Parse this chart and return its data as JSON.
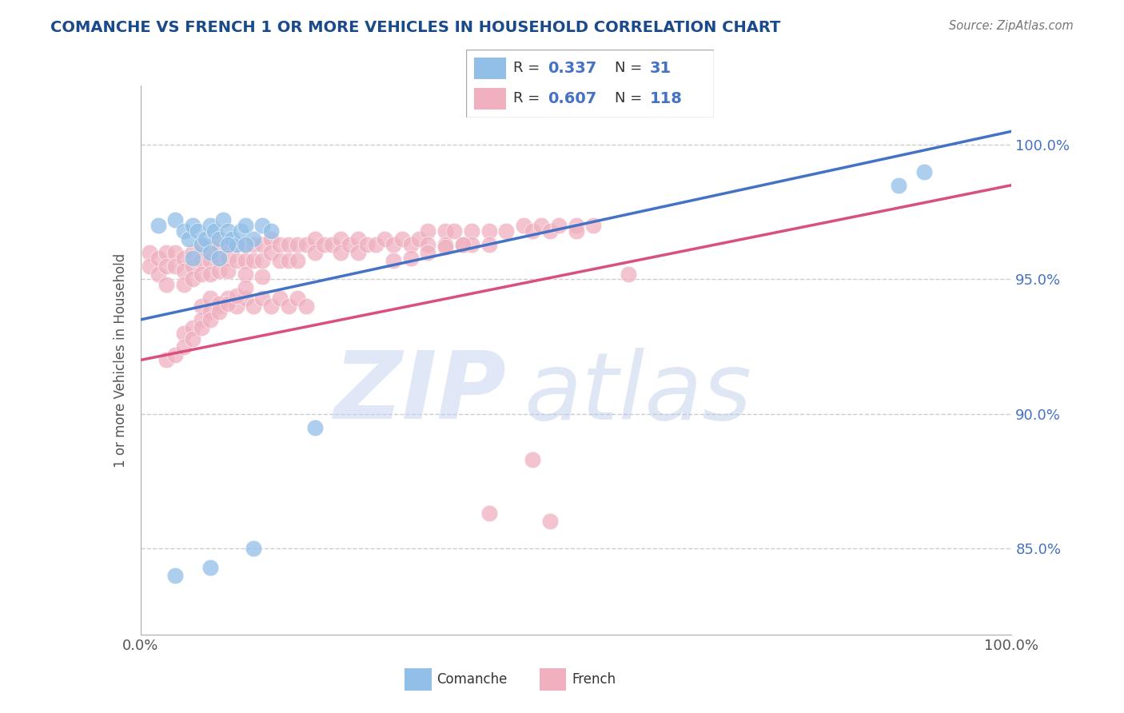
{
  "title": "COMANCHE VS FRENCH 1 OR MORE VEHICLES IN HOUSEHOLD CORRELATION CHART",
  "source_text": "Source: ZipAtlas.com",
  "ylabel": "1 or more Vehicles in Household",
  "xlim": [
    0.0,
    1.0
  ],
  "ylim": [
    0.818,
    1.022
  ],
  "yticks": [
    0.85,
    0.9,
    0.95,
    1.0
  ],
  "ytick_labels": [
    "85.0%",
    "90.0%",
    "95.0%",
    "100.0%"
  ],
  "comanche_R": 0.337,
  "comanche_N": 31,
  "french_R": 0.607,
  "french_N": 118,
  "comanche_color": "#92bfe8",
  "french_color": "#f0b0c0",
  "comanche_line_color": "#4472c4",
  "french_line_color": "#d94f7e",
  "watermark_zip": "ZIP",
  "watermark_atlas": "atlas",
  "watermark_color_zip": "#c8d4ee",
  "watermark_color_atlas": "#c8d4ee",
  "legend_blue_label": "Comanche",
  "legend_pink_label": "French",
  "comanche_x": [
    0.02,
    0.04,
    0.05,
    0.055,
    0.06,
    0.065,
    0.07,
    0.075,
    0.08,
    0.085,
    0.09,
    0.095,
    0.1,
    0.105,
    0.11,
    0.115,
    0.12,
    0.13,
    0.14,
    0.15,
    0.06,
    0.08,
    0.12,
    0.09,
    0.1,
    0.04,
    0.2,
    0.13,
    0.08,
    0.87,
    0.9
  ],
  "comanche_y": [
    0.97,
    0.972,
    0.968,
    0.965,
    0.97,
    0.968,
    0.963,
    0.965,
    0.97,
    0.968,
    0.965,
    0.972,
    0.968,
    0.965,
    0.963,
    0.968,
    0.97,
    0.965,
    0.97,
    0.968,
    0.958,
    0.96,
    0.963,
    0.958,
    0.963,
    0.84,
    0.895,
    0.85,
    0.843,
    0.985,
    0.99
  ],
  "french_x": [
    0.01,
    0.01,
    0.02,
    0.02,
    0.03,
    0.03,
    0.03,
    0.04,
    0.04,
    0.05,
    0.05,
    0.05,
    0.06,
    0.06,
    0.06,
    0.07,
    0.07,
    0.07,
    0.08,
    0.08,
    0.08,
    0.09,
    0.09,
    0.09,
    0.1,
    0.1,
    0.1,
    0.11,
    0.11,
    0.12,
    0.12,
    0.12,
    0.13,
    0.13,
    0.14,
    0.14,
    0.14,
    0.15,
    0.15,
    0.16,
    0.16,
    0.17,
    0.17,
    0.18,
    0.18,
    0.19,
    0.2,
    0.2,
    0.21,
    0.22,
    0.23,
    0.23,
    0.24,
    0.25,
    0.25,
    0.26,
    0.27,
    0.28,
    0.29,
    0.3,
    0.31,
    0.32,
    0.33,
    0.33,
    0.35,
    0.35,
    0.36,
    0.37,
    0.38,
    0.38,
    0.4,
    0.4,
    0.42,
    0.44,
    0.45,
    0.46,
    0.47,
    0.48,
    0.5,
    0.52,
    0.07,
    0.08,
    0.09,
    0.1,
    0.11,
    0.12,
    0.13,
    0.14,
    0.15,
    0.16,
    0.17,
    0.18,
    0.19,
    0.05,
    0.06,
    0.07,
    0.08,
    0.09,
    0.29,
    0.31,
    0.33,
    0.35,
    0.37,
    0.5,
    0.03,
    0.04,
    0.05,
    0.06,
    0.07,
    0.08,
    0.09,
    0.1,
    0.11,
    0.12,
    0.4,
    0.45,
    0.47,
    0.56
  ],
  "french_y": [
    0.96,
    0.955,
    0.958,
    0.952,
    0.96,
    0.955,
    0.948,
    0.96,
    0.955,
    0.958,
    0.953,
    0.948,
    0.96,
    0.955,
    0.95,
    0.962,
    0.957,
    0.952,
    0.962,
    0.957,
    0.952,
    0.963,
    0.958,
    0.953,
    0.963,
    0.958,
    0.953,
    0.963,
    0.957,
    0.963,
    0.957,
    0.952,
    0.963,
    0.957,
    0.963,
    0.957,
    0.951,
    0.965,
    0.96,
    0.963,
    0.957,
    0.963,
    0.957,
    0.963,
    0.957,
    0.963,
    0.965,
    0.96,
    0.963,
    0.963,
    0.965,
    0.96,
    0.963,
    0.965,
    0.96,
    0.963,
    0.963,
    0.965,
    0.963,
    0.965,
    0.963,
    0.965,
    0.968,
    0.963,
    0.968,
    0.963,
    0.968,
    0.963,
    0.968,
    0.963,
    0.968,
    0.963,
    0.968,
    0.97,
    0.968,
    0.97,
    0.968,
    0.97,
    0.97,
    0.97,
    0.94,
    0.943,
    0.94,
    0.943,
    0.94,
    0.943,
    0.94,
    0.943,
    0.94,
    0.943,
    0.94,
    0.943,
    0.94,
    0.93,
    0.932,
    0.935,
    0.938,
    0.941,
    0.957,
    0.958,
    0.96,
    0.962,
    0.963,
    0.968,
    0.92,
    0.922,
    0.925,
    0.928,
    0.932,
    0.935,
    0.938,
    0.941,
    0.944,
    0.947,
    0.863,
    0.883,
    0.86,
    0.952
  ]
}
